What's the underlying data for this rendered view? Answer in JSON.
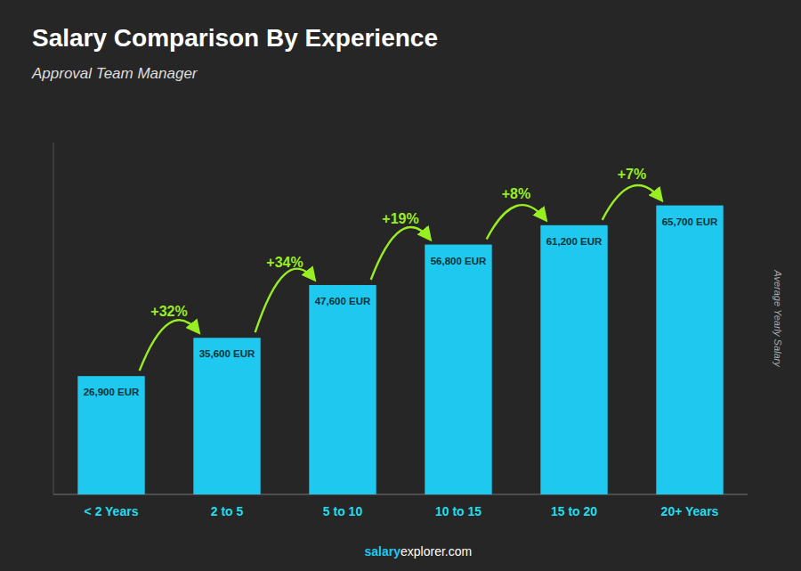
{
  "chart_data": {
    "type": "bar",
    "title": "Salary Comparison By Experience",
    "subtitle": "Approval Team Manager",
    "ylabel": "Average Yearly Salary",
    "categories": [
      "< 2 Years",
      "2 to 5",
      "5 to 10",
      "10 to 15",
      "15 to 20",
      "20+ Years"
    ],
    "values": [
      26900,
      35600,
      47600,
      56800,
      61200,
      65700
    ],
    "value_labels": [
      "26,900 EUR",
      "35,600 EUR",
      "47,600 EUR",
      "56,800 EUR",
      "61,200 EUR",
      "65,700 EUR"
    ],
    "data_labels": true,
    "annotations": [
      "+32%",
      "+34%",
      "+19%",
      "+8%",
      "+7%"
    ],
    "footer": [
      "salary",
      "explorer.com"
    ],
    "color": "#1EC8EE",
    "ylim": [
      0,
      80000
    ],
    "tick_labels": "x",
    "grid": false
  }
}
